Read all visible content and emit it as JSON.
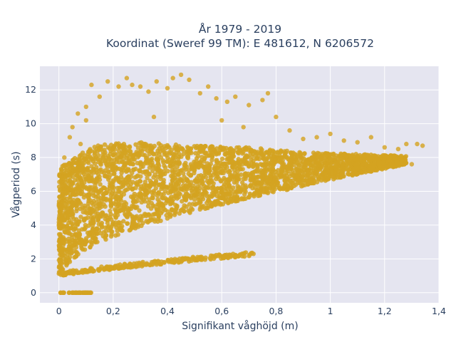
{
  "chart_data": {
    "type": "scatter",
    "title_line1": "År 1979 - 2019",
    "title_line2": "Koordinat (Sweref 99 TM): E 481612, N 6206572",
    "xlabel": "Signifikant våghöjd (m)",
    "ylabel": "Vågperiod (s)",
    "xlim": [
      -0.07,
      1.4
    ],
    "ylim": [
      -0.6,
      13.4
    ],
    "x_ticks": [
      0,
      0.2,
      0.4,
      0.6,
      0.8,
      1,
      1.2,
      1.4
    ],
    "x_tick_labels": [
      "0",
      "0,2",
      "0,4",
      "0,6",
      "0,8",
      "1",
      "1,2",
      "1,4"
    ],
    "y_ticks": [
      0,
      2,
      4,
      6,
      8,
      10,
      12
    ],
    "y_tick_labels": [
      "0",
      "2",
      "4",
      "6",
      "8",
      "10",
      "12"
    ],
    "grid": true,
    "legend": "none",
    "marker_color": "#d4a321",
    "plot_bg": "#e5e5f0",
    "main_band": {
      "lower": [
        [
          0.0,
          1.1
        ],
        [
          0.05,
          2.0
        ],
        [
          0.15,
          3.0
        ],
        [
          0.3,
          3.9
        ],
        [
          0.5,
          4.8
        ],
        [
          0.7,
          5.6
        ],
        [
          0.9,
          6.3
        ],
        [
          1.1,
          7.0
        ],
        [
          1.28,
          7.6
        ]
      ],
      "upper": [
        [
          0.0,
          7.3
        ],
        [
          0.05,
          8.0
        ],
        [
          0.15,
          8.8
        ],
        [
          0.3,
          8.9
        ],
        [
          0.5,
          8.7
        ],
        [
          0.7,
          8.6
        ],
        [
          0.9,
          8.3
        ],
        [
          1.1,
          8.2
        ],
        [
          1.28,
          8.1
        ]
      ]
    },
    "low_branch": [
      [
        0.0,
        1.1
      ],
      [
        0.2,
        1.5
      ],
      [
        0.4,
        1.85
      ],
      [
        0.6,
        2.15
      ],
      [
        0.72,
        2.3
      ]
    ],
    "zero_cluster": [
      [
        0.0,
        0.0
      ],
      [
        0.12,
        0.0
      ]
    ],
    "outliers": [
      [
        0.02,
        8.0
      ],
      [
        0.05,
        9.8
      ],
      [
        0.07,
        10.6
      ],
      [
        0.1,
        11.0
      ],
      [
        0.12,
        12.3
      ],
      [
        0.15,
        11.6
      ],
      [
        0.18,
        12.5
      ],
      [
        0.22,
        12.2
      ],
      [
        0.25,
        12.7
      ],
      [
        0.27,
        12.3
      ],
      [
        0.3,
        12.2
      ],
      [
        0.33,
        11.9
      ],
      [
        0.36,
        12.5
      ],
      [
        0.4,
        12.1
      ],
      [
        0.42,
        12.7
      ],
      [
        0.45,
        12.9
      ],
      [
        0.48,
        12.6
      ],
      [
        0.52,
        11.8
      ],
      [
        0.55,
        12.2
      ],
      [
        0.58,
        11.5
      ],
      [
        0.62,
        11.3
      ],
      [
        0.65,
        11.6
      ],
      [
        0.7,
        11.1
      ],
      [
        0.75,
        11.4
      ],
      [
        0.77,
        11.8
      ],
      [
        0.8,
        10.4
      ],
      [
        0.85,
        9.6
      ],
      [
        0.9,
        9.1
      ],
      [
        0.95,
        9.2
      ],
      [
        1.0,
        9.4
      ],
      [
        1.05,
        9.0
      ],
      [
        1.1,
        8.9
      ],
      [
        1.15,
        9.2
      ],
      [
        1.2,
        8.6
      ],
      [
        1.25,
        8.5
      ],
      [
        1.28,
        8.8
      ],
      [
        1.32,
        8.8
      ],
      [
        1.34,
        8.7
      ],
      [
        1.3,
        7.6
      ],
      [
        1.22,
        7.8
      ],
      [
        0.04,
        9.2
      ],
      [
        0.08,
        8.8
      ],
      [
        0.1,
        10.2
      ],
      [
        0.35,
        10.4
      ],
      [
        0.6,
        10.2
      ],
      [
        0.68,
        9.8
      ]
    ]
  }
}
